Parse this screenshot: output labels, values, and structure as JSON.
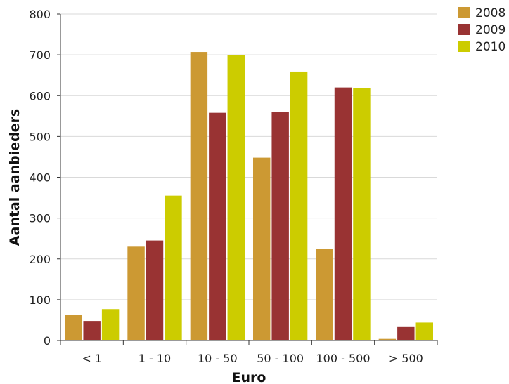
{
  "chart_data": {
    "type": "bar",
    "title": "",
    "xlabel": "Euro",
    "ylabel": "Aantal aanbieders",
    "categories": [
      "< 1",
      "1 - 10",
      "10 - 50",
      "50 - 100",
      "100 - 500",
      "> 500"
    ],
    "ylim": [
      0,
      800
    ],
    "yticks": [
      0,
      100,
      200,
      300,
      400,
      500,
      600,
      700,
      800
    ],
    "grid": true,
    "legend_position": "top-right",
    "series": [
      {
        "name": "2008",
        "color": "#cc9933",
        "values": [
          62,
          230,
          707,
          448,
          225,
          4
        ]
      },
      {
        "name": "2009",
        "color": "#993333",
        "values": [
          48,
          245,
          558,
          560,
          620,
          33
        ]
      },
      {
        "name": "2010",
        "color": "#cccc00",
        "values": [
          77,
          355,
          700,
          659,
          618,
          44
        ]
      }
    ]
  }
}
